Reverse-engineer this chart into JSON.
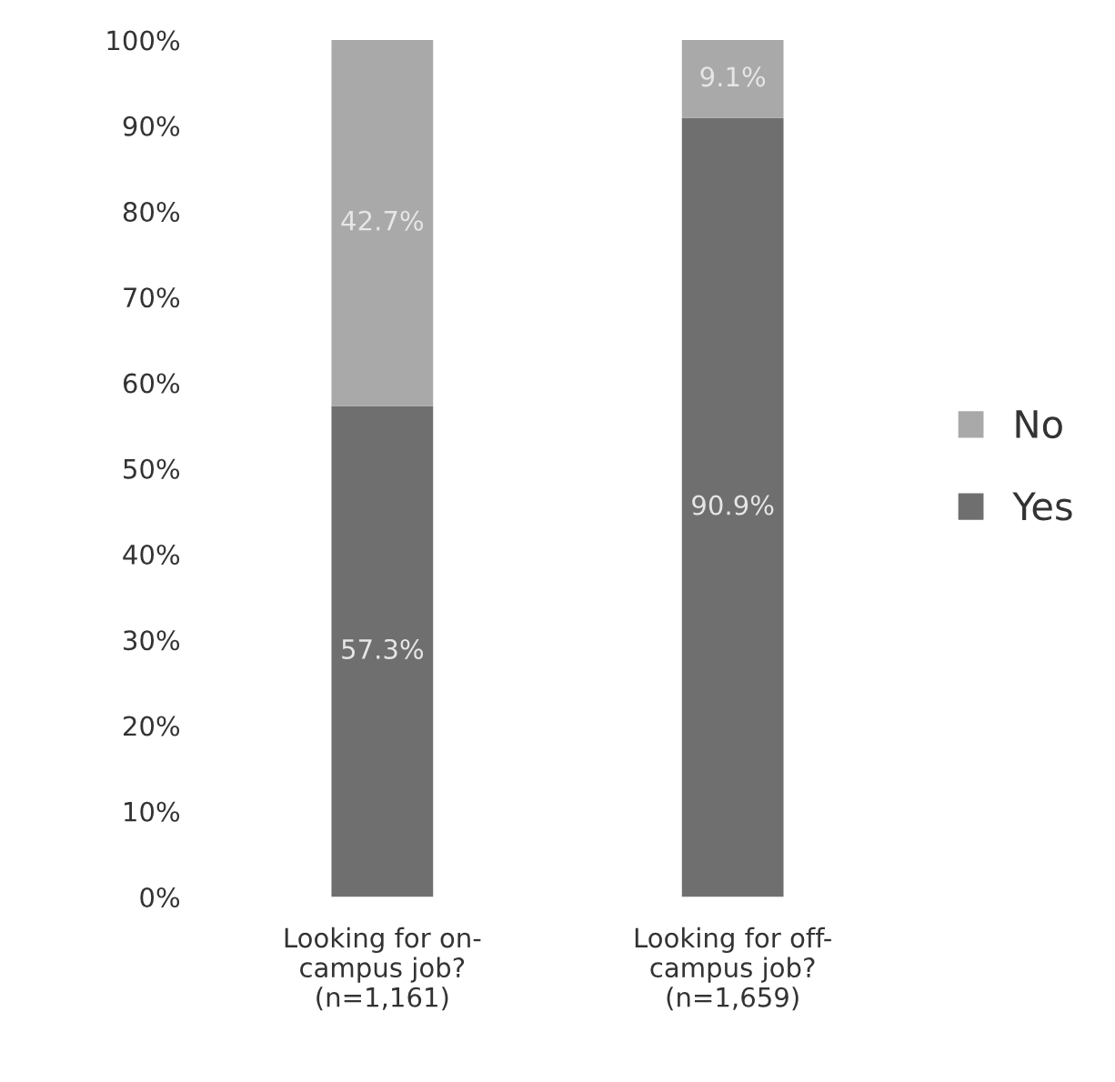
{
  "chart_data": {
    "type": "bar",
    "stacked": true,
    "categories": [
      "Looking for on-\ncampus job?\n(n=1,161)",
      "Looking for off-\ncampus job?\n(n=1,659)"
    ],
    "series": [
      {
        "name": "Yes",
        "color": "#6f6f6f",
        "values": [
          57.3,
          90.9
        ],
        "value_labels": [
          "57.3%",
          "90.9%"
        ]
      },
      {
        "name": "No",
        "color": "#a9a9a9",
        "values": [
          42.7,
          9.1
        ],
        "value_labels": [
          "42.7%",
          "9.1%"
        ]
      }
    ],
    "ylim": [
      0,
      100
    ],
    "yticks": [
      {
        "value": 0,
        "label": "0%"
      },
      {
        "value": 10,
        "label": "10%"
      },
      {
        "value": 20,
        "label": "20%"
      },
      {
        "value": 30,
        "label": "30%"
      },
      {
        "value": 40,
        "label": "40%"
      },
      {
        "value": 50,
        "label": "50%"
      },
      {
        "value": 60,
        "label": "60%"
      },
      {
        "value": 70,
        "label": "70%"
      },
      {
        "value": 80,
        "label": "80%"
      },
      {
        "value": 90,
        "label": "90%"
      },
      {
        "value": 100,
        "label": "100%"
      }
    ],
    "legend": "right",
    "grid": false
  }
}
